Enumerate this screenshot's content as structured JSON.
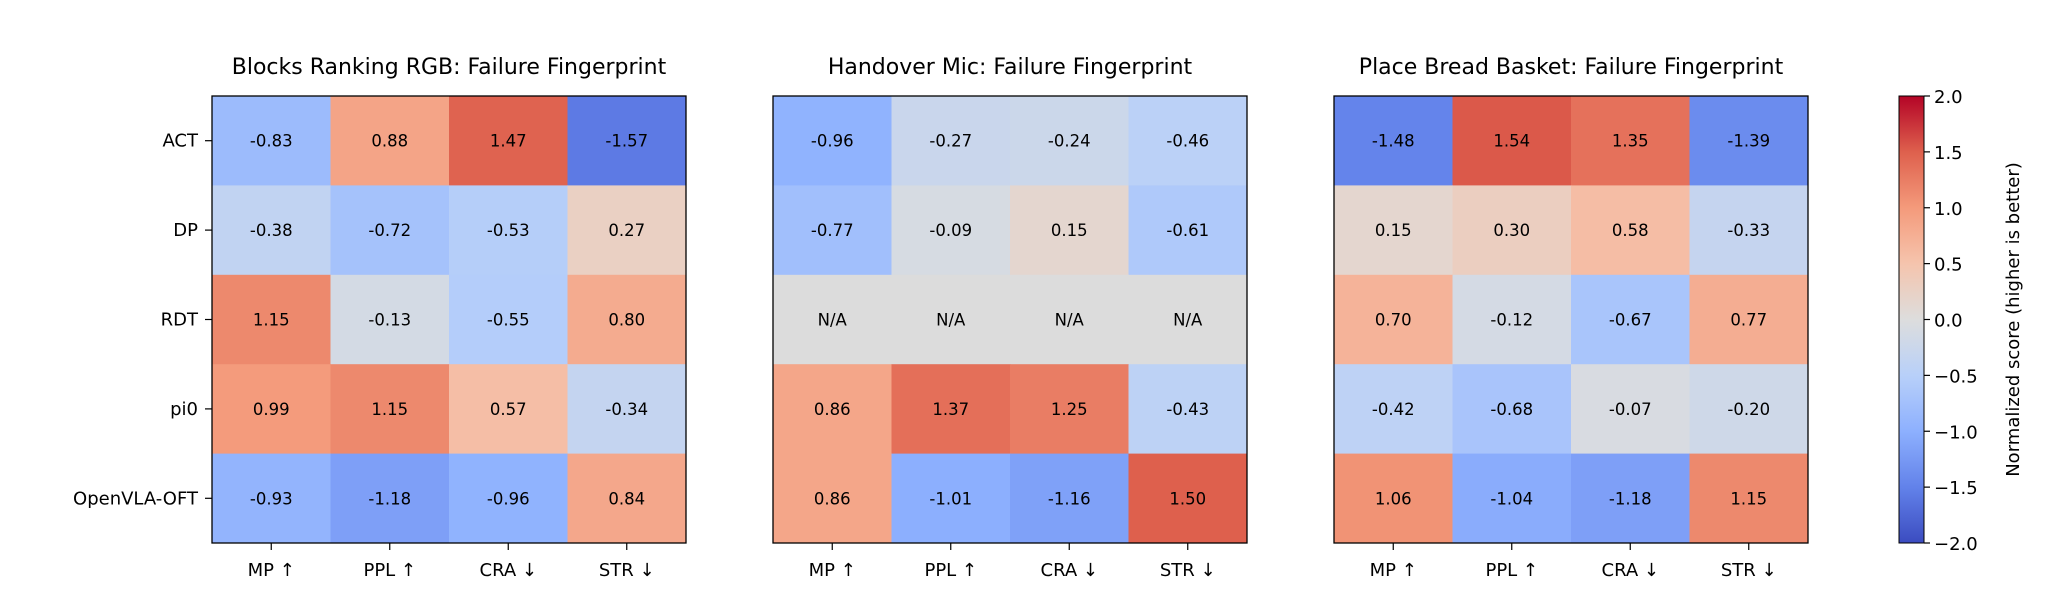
{
  "chart_data": [
    {
      "type": "heatmap",
      "title": "Blocks Ranking RGB: Failure Fingerprint",
      "rows": [
        "ACT",
        "DP",
        "RDT",
        "pi0",
        "OpenVLA-OFT"
      ],
      "columns": [
        "MP ↑",
        "PPL ↑",
        "CRA ↓",
        "STR ↓"
      ],
      "values": [
        [
          -0.83,
          0.88,
          1.47,
          -1.57
        ],
        [
          -0.38,
          -0.72,
          -0.53,
          0.27
        ],
        [
          1.15,
          -0.13,
          -0.55,
          0.8
        ],
        [
          0.99,
          1.15,
          0.57,
          -0.34
        ],
        [
          -0.93,
          -1.18,
          -0.96,
          0.84
        ]
      ]
    },
    {
      "type": "heatmap",
      "title": "Handover Mic: Failure Fingerprint",
      "rows": [
        "ACT",
        "DP",
        "RDT",
        "pi0",
        "OpenVLA-OFT"
      ],
      "columns": [
        "MP ↑",
        "PPL ↑",
        "CRA ↓",
        "STR ↓"
      ],
      "values": [
        [
          -0.96,
          -0.27,
          -0.24,
          -0.46
        ],
        [
          -0.77,
          -0.09,
          0.15,
          -0.61
        ],
        [
          null,
          null,
          null,
          null
        ],
        [
          0.86,
          1.37,
          1.25,
          -0.43
        ],
        [
          0.86,
          -1.01,
          -1.16,
          1.5
        ]
      ],
      "missing_label": "N/A"
    },
    {
      "type": "heatmap",
      "title": "Place Bread Basket: Failure Fingerprint",
      "rows": [
        "ACT",
        "DP",
        "RDT",
        "pi0",
        "OpenVLA-OFT"
      ],
      "columns": [
        "MP ↑",
        "PPL ↑",
        "CRA ↓",
        "STR ↓"
      ],
      "values": [
        [
          -1.48,
          1.54,
          1.35,
          -1.39
        ],
        [
          0.15,
          0.3,
          0.58,
          -0.33
        ],
        [
          0.7,
          -0.12,
          -0.67,
          0.77
        ],
        [
          -0.42,
          -0.68,
          -0.07,
          -0.2
        ],
        [
          1.06,
          -1.04,
          -1.18,
          1.15
        ]
      ]
    }
  ],
  "colorbar": {
    "label": "Normalized score (higher is better)",
    "range": [
      -2.0,
      2.0
    ],
    "ticks": [
      "2.0",
      "1.5",
      "1.0",
      "0.5",
      "0.0",
      "−0.5",
      "−1.0",
      "−1.5",
      "−2.0"
    ],
    "colormap": "coolwarm",
    "missing_color": "#dcdcdc"
  }
}
